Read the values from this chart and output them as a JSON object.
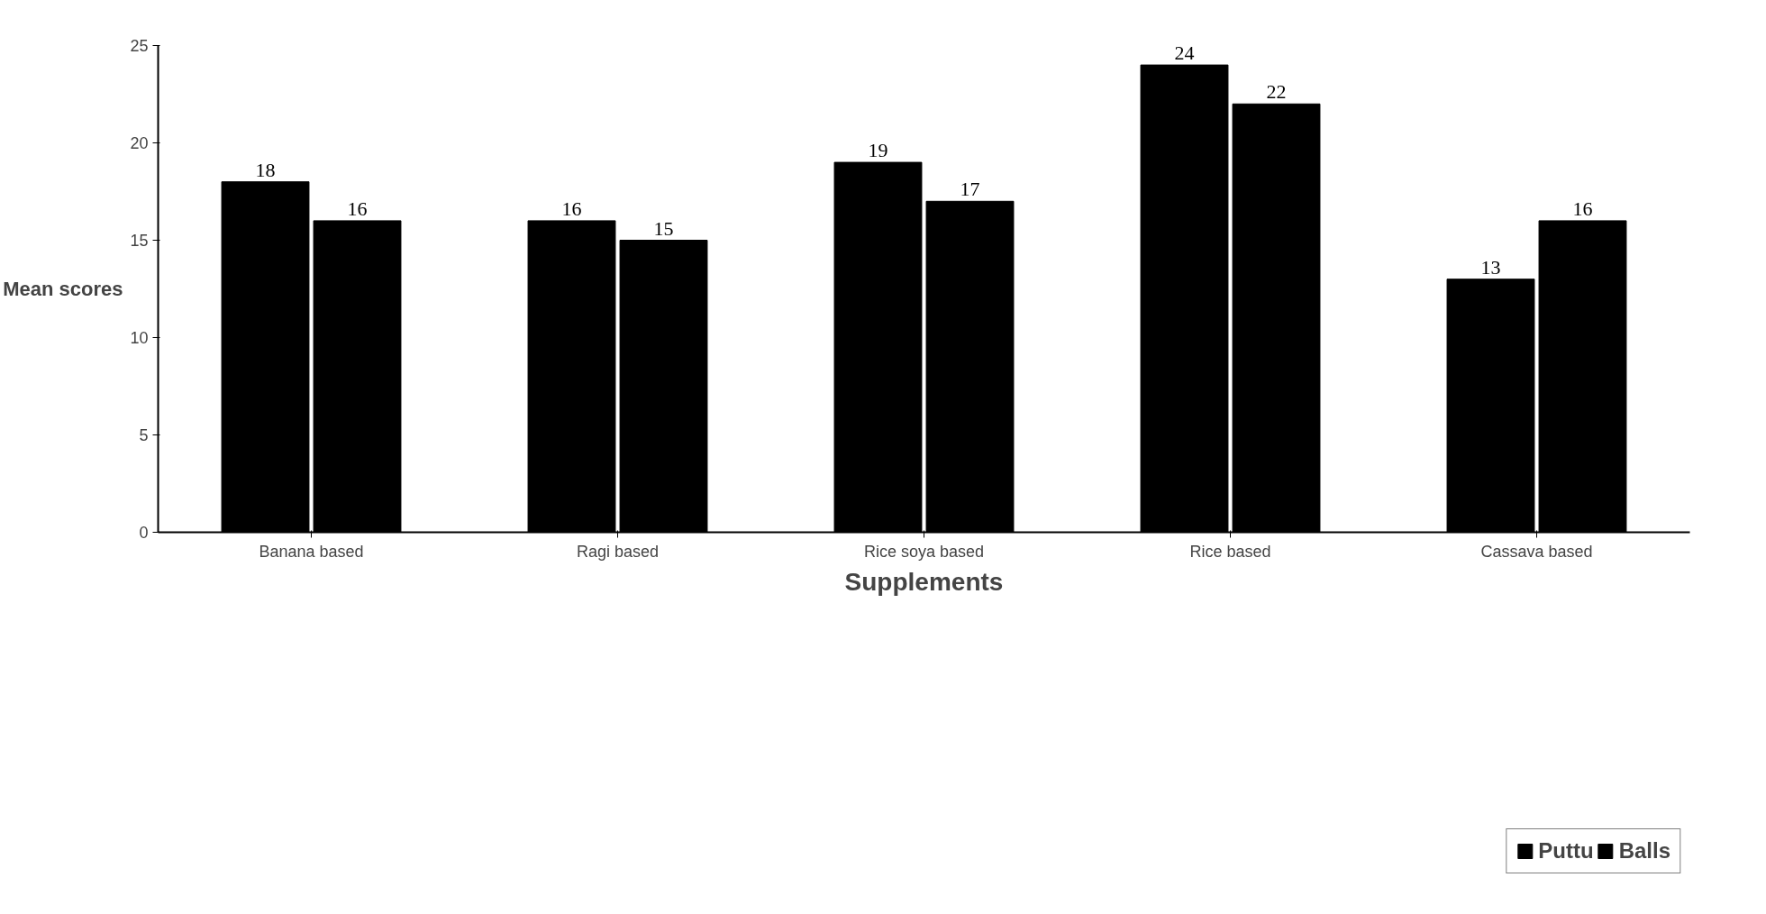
{
  "chart_data": {
    "type": "bar",
    "xlabel": "Supplements",
    "ylabel": "Mean scores",
    "categories": [
      "Banana based",
      "Ragi based",
      "Rice soya based",
      "Rice based",
      "Cassava based"
    ],
    "series": [
      {
        "name": "Puttu",
        "color": "#000000",
        "values": [
          18,
          16,
          19,
          24,
          13
        ]
      },
      {
        "name": "Balls",
        "color": "#000000",
        "values": [
          16,
          15,
          17,
          22,
          16
        ]
      }
    ],
    "ylim": [
      0,
      25
    ],
    "yticks": [
      0,
      5,
      10,
      15,
      20,
      25
    ],
    "grid": false,
    "legend": "bottom right",
    "data_labels": true
  }
}
